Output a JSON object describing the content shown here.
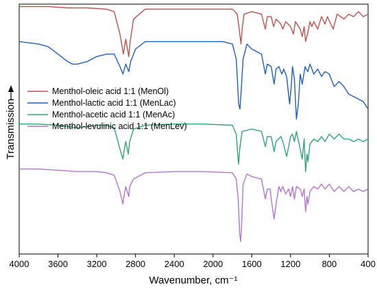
{
  "chart_data": {
    "type": "line",
    "xlabel": "Wavenumber, cm⁻¹",
    "ylabel": "Transmission",
    "xlim": [
      4000,
      400
    ],
    "x_reversed": true,
    "x_ticks": [
      4000,
      3600,
      3200,
      2800,
      2400,
      2000,
      1600,
      1200,
      800,
      400
    ],
    "y_ticks_shown": false,
    "grid": false,
    "legend_position": "upper-left",
    "ylim": [
      0,
      100
    ],
    "series": [
      {
        "name": "Menthol-oleic acid 1:1 (MenOl)",
        "color": "#c0504d",
        "points": [
          [
            4000,
            99
          ],
          [
            3700,
            99
          ],
          [
            3500,
            98.5
          ],
          [
            3300,
            98.5
          ],
          [
            3100,
            98
          ],
          [
            3020,
            97
          ],
          [
            2960,
            88
          ],
          [
            2925,
            80
          ],
          [
            2900,
            86
          ],
          [
            2870,
            79
          ],
          [
            2855,
            85
          ],
          [
            2820,
            94
          ],
          [
            2700,
            98
          ],
          [
            2400,
            98
          ],
          [
            2100,
            98
          ],
          [
            1800,
            98
          ],
          [
            1750,
            96
          ],
          [
            1730,
            90
          ],
          [
            1712,
            84
          ],
          [
            1700,
            90
          ],
          [
            1680,
            96
          ],
          [
            1600,
            97
          ],
          [
            1500,
            96
          ],
          [
            1460,
            90
          ],
          [
            1440,
            95
          ],
          [
            1400,
            95
          ],
          [
            1375,
            91
          ],
          [
            1350,
            94
          ],
          [
            1300,
            92
          ],
          [
            1280,
            90
          ],
          [
            1250,
            93
          ],
          [
            1200,
            91
          ],
          [
            1170,
            88
          ],
          [
            1150,
            93
          ],
          [
            1100,
            90
          ],
          [
            1080,
            87
          ],
          [
            1060,
            91
          ],
          [
            1045,
            85
          ],
          [
            1025,
            88
          ],
          [
            1000,
            93
          ],
          [
            980,
            91
          ],
          [
            960,
            93
          ],
          [
            920,
            90
          ],
          [
            880,
            95
          ],
          [
            845,
            92
          ],
          [
            820,
            95
          ],
          [
            760,
            90
          ],
          [
            720,
            96
          ],
          [
            650,
            94
          ],
          [
            600,
            96
          ],
          [
            550,
            95
          ],
          [
            500,
            97
          ],
          [
            450,
            95
          ],
          [
            400,
            96
          ]
        ]
      },
      {
        "name": "Menthol-lactic acid 1:1 (MenLac)",
        "color": "#1f5fbf",
        "points": [
          [
            4000,
            85
          ],
          [
            3800,
            84
          ],
          [
            3700,
            83
          ],
          [
            3600,
            80
          ],
          [
            3500,
            77
          ],
          [
            3450,
            76
          ],
          [
            3400,
            76
          ],
          [
            3300,
            77
          ],
          [
            3200,
            79
          ],
          [
            3100,
            80
          ],
          [
            3020,
            80
          ],
          [
            2960,
            75
          ],
          [
            2930,
            72
          ],
          [
            2900,
            76
          ],
          [
            2870,
            73
          ],
          [
            2850,
            77
          ],
          [
            2800,
            82
          ],
          [
            2700,
            85
          ],
          [
            2500,
            85
          ],
          [
            2300,
            85
          ],
          [
            2100,
            85
          ],
          [
            1900,
            85
          ],
          [
            1800,
            84
          ],
          [
            1760,
            78
          ],
          [
            1735,
            60
          ],
          [
            1722,
            58
          ],
          [
            1710,
            65
          ],
          [
            1690,
            78
          ],
          [
            1650,
            84
          ],
          [
            1600,
            82
          ],
          [
            1500,
            80
          ],
          [
            1460,
            72
          ],
          [
            1440,
            76
          ],
          [
            1400,
            75
          ],
          [
            1370,
            68
          ],
          [
            1350,
            74
          ],
          [
            1320,
            75
          ],
          [
            1290,
            72
          ],
          [
            1270,
            74
          ],
          [
            1240,
            71
          ],
          [
            1210,
            60
          ],
          [
            1195,
            66
          ],
          [
            1180,
            75
          ],
          [
            1160,
            70
          ],
          [
            1140,
            54
          ],
          [
            1120,
            60
          ],
          [
            1100,
            72
          ],
          [
            1080,
            68
          ],
          [
            1050,
            75
          ],
          [
            1040,
            74
          ],
          [
            1020,
            73
          ],
          [
            1000,
            76
          ],
          [
            960,
            72
          ],
          [
            920,
            74
          ],
          [
            880,
            71
          ],
          [
            845,
            73
          ],
          [
            800,
            72
          ],
          [
            750,
            67
          ],
          [
            700,
            69
          ],
          [
            650,
            67
          ],
          [
            600,
            64
          ],
          [
            550,
            63
          ],
          [
            500,
            62
          ],
          [
            450,
            61
          ],
          [
            400,
            58
          ]
        ]
      },
      {
        "name": "Menthol-acetic acid 1:1 (MenAc)",
        "color": "#2ca57a",
        "points": [
          [
            4000,
            52
          ],
          [
            3800,
            52
          ],
          [
            3600,
            51.5
          ],
          [
            3500,
            51
          ],
          [
            3400,
            50.5
          ],
          [
            3300,
            51
          ],
          [
            3200,
            51.5
          ],
          [
            3100,
            51.5
          ],
          [
            3020,
            50.5
          ],
          [
            2960,
            42
          ],
          [
            2930,
            38
          ],
          [
            2915,
            42
          ],
          [
            2900,
            45
          ],
          [
            2875,
            40
          ],
          [
            2860,
            45
          ],
          [
            2820,
            50
          ],
          [
            2700,
            51.5
          ],
          [
            2400,
            52
          ],
          [
            2100,
            52
          ],
          [
            1800,
            51.5
          ],
          [
            1760,
            48
          ],
          [
            1745,
            40
          ],
          [
            1735,
            36
          ],
          [
            1725,
            42
          ],
          [
            1700,
            49
          ],
          [
            1600,
            50
          ],
          [
            1500,
            49
          ],
          [
            1460,
            43
          ],
          [
            1440,
            47
          ],
          [
            1400,
            47
          ],
          [
            1370,
            41
          ],
          [
            1350,
            45
          ],
          [
            1300,
            47
          ],
          [
            1280,
            45
          ],
          [
            1240,
            39
          ],
          [
            1220,
            43
          ],
          [
            1200,
            47
          ],
          [
            1180,
            48
          ],
          [
            1160,
            45
          ],
          [
            1140,
            49
          ],
          [
            1100,
            42
          ],
          [
            1080,
            38
          ],
          [
            1060,
            46
          ],
          [
            1045,
            33
          ],
          [
            1030,
            40
          ],
          [
            1020,
            37
          ],
          [
            1000,
            44
          ],
          [
            960,
            46
          ],
          [
            920,
            45
          ],
          [
            880,
            47
          ],
          [
            845,
            45
          ],
          [
            800,
            48
          ],
          [
            750,
            46
          ],
          [
            700,
            48
          ],
          [
            650,
            46
          ],
          [
            600,
            46
          ],
          [
            550,
            45
          ],
          [
            500,
            46
          ],
          [
            450,
            45
          ],
          [
            400,
            46
          ]
        ]
      },
      {
        "name": "Menthol-levulinic acid 1:1 (MenLev)",
        "color": "#b473d2",
        "points": [
          [
            4000,
            34
          ],
          [
            3800,
            34
          ],
          [
            3600,
            33.5
          ],
          [
            3400,
            33
          ],
          [
            3200,
            33
          ],
          [
            3100,
            32.5
          ],
          [
            3020,
            31.5
          ],
          [
            2960,
            25
          ],
          [
            2930,
            20
          ],
          [
            2915,
            24
          ],
          [
            2900,
            27
          ],
          [
            2870,
            23
          ],
          [
            2860,
            27
          ],
          [
            2820,
            30
          ],
          [
            2700,
            32.5
          ],
          [
            2400,
            33
          ],
          [
            2100,
            33
          ],
          [
            1800,
            32.5
          ],
          [
            1760,
            30
          ],
          [
            1740,
            22
          ],
          [
            1725,
            8
          ],
          [
            1715,
            5
          ],
          [
            1705,
            12
          ],
          [
            1690,
            28
          ],
          [
            1650,
            32
          ],
          [
            1600,
            31
          ],
          [
            1500,
            30
          ],
          [
            1460,
            22
          ],
          [
            1440,
            26
          ],
          [
            1410,
            26
          ],
          [
            1400,
            22
          ],
          [
            1370,
            14
          ],
          [
            1350,
            20
          ],
          [
            1320,
            27
          ],
          [
            1300,
            25
          ],
          [
            1280,
            27
          ],
          [
            1250,
            24
          ],
          [
            1220,
            26
          ],
          [
            1200,
            23
          ],
          [
            1180,
            27
          ],
          [
            1160,
            22
          ],
          [
            1140,
            27
          ],
          [
            1100,
            26
          ],
          [
            1080,
            23
          ],
          [
            1060,
            26
          ],
          [
            1045,
            17
          ],
          [
            1030,
            23
          ],
          [
            1020,
            20
          ],
          [
            1000,
            25
          ],
          [
            960,
            27
          ],
          [
            920,
            26
          ],
          [
            880,
            28
          ],
          [
            845,
            26
          ],
          [
            800,
            28
          ],
          [
            750,
            25
          ],
          [
            700,
            27
          ],
          [
            650,
            25
          ],
          [
            600,
            27
          ],
          [
            550,
            25
          ],
          [
            500,
            26
          ],
          [
            450,
            25
          ],
          [
            400,
            26
          ]
        ]
      }
    ]
  }
}
